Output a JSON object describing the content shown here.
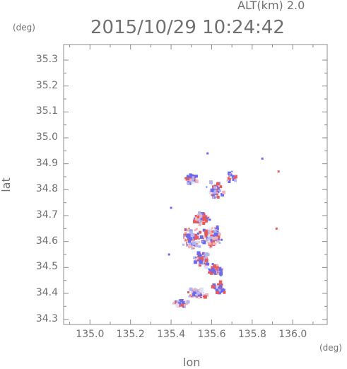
{
  "chart_data": {
    "type": "scatter",
    "title": "2015/10/29 10:24:42",
    "altitude_label": "ALT(km) 2.0",
    "xlabel": "lon",
    "ylabel": "lat",
    "x_unit": "(deg)",
    "y_unit": "(deg)",
    "xlim": [
      134.87,
      136.17
    ],
    "ylim": [
      34.28,
      35.36
    ],
    "xticks": [
      "135.0",
      "135.2",
      "135.4",
      "135.6",
      "135.8",
      "136.0"
    ],
    "yticks": [
      "34.3",
      "34.4",
      "34.5",
      "34.6",
      "34.7",
      "34.8",
      "34.9",
      "35.0",
      "35.1",
      "35.2",
      "35.3"
    ],
    "grid": false,
    "colors": {
      "frame": "#8c8c8c",
      "positive": "#e85a5a",
      "negative": "#6a6af0",
      "neutral": "#dde0f5"
    },
    "clusters": [
      {
        "x": 135.45,
        "y": 34.36,
        "spread": [
          0.05,
          0.02
        ],
        "count": 50
      },
      {
        "x": 135.53,
        "y": 34.4,
        "spread": [
          0.05,
          0.025
        ],
        "count": 60
      },
      {
        "x": 135.64,
        "y": 34.42,
        "spread": [
          0.04,
          0.03
        ],
        "count": 55
      },
      {
        "x": 135.62,
        "y": 34.49,
        "spread": [
          0.05,
          0.03
        ],
        "count": 60
      },
      {
        "x": 135.55,
        "y": 34.53,
        "spread": [
          0.05,
          0.04
        ],
        "count": 70
      },
      {
        "x": 135.5,
        "y": 34.61,
        "spread": [
          0.06,
          0.05
        ],
        "count": 110
      },
      {
        "x": 135.6,
        "y": 34.62,
        "spread": [
          0.06,
          0.05
        ],
        "count": 110
      },
      {
        "x": 135.55,
        "y": 34.69,
        "spread": [
          0.05,
          0.03
        ],
        "count": 70
      },
      {
        "x": 135.5,
        "y": 34.84,
        "spread": [
          0.04,
          0.03
        ],
        "count": 40
      },
      {
        "x": 135.62,
        "y": 34.8,
        "spread": [
          0.05,
          0.04
        ],
        "count": 60
      },
      {
        "x": 135.7,
        "y": 34.85,
        "spread": [
          0.03,
          0.03
        ],
        "count": 25
      }
    ],
    "isolated_points": [
      {
        "x": 135.92,
        "y": 34.65,
        "v": 1
      },
      {
        "x": 135.93,
        "y": 34.87,
        "v": 1
      },
      {
        "x": 135.85,
        "y": 34.92,
        "v": -1
      },
      {
        "x": 135.4,
        "y": 34.73,
        "v": -1
      },
      {
        "x": 135.39,
        "y": 34.55,
        "v": -1
      },
      {
        "x": 135.58,
        "y": 34.94,
        "v": -1
      }
    ]
  }
}
